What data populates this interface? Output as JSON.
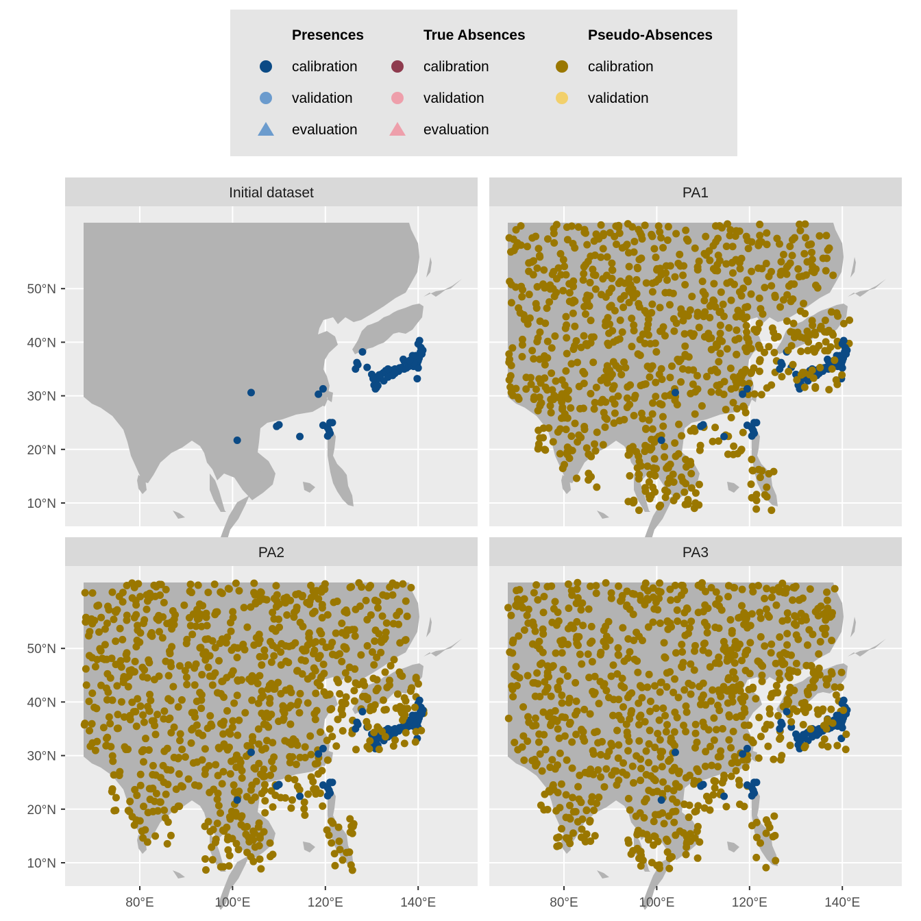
{
  "legend": {
    "groups": [
      {
        "title": "Presences",
        "items": [
          {
            "label": "calibration",
            "color": "#0b4a85",
            "shape": "circle"
          },
          {
            "label": "validation",
            "color": "#6b9bcd",
            "shape": "circle"
          },
          {
            "label": "evaluation",
            "color": "#6b9bcd",
            "shape": "triangle"
          }
        ]
      },
      {
        "title": "True Absences",
        "items": [
          {
            "label": "calibration",
            "color": "#8e3b4e",
            "shape": "circle"
          },
          {
            "label": "validation",
            "color": "#ee9fab",
            "shape": "circle"
          },
          {
            "label": "evaluation",
            "color": "#ee9fab",
            "shape": "triangle"
          }
        ]
      },
      {
        "title": "Pseudo-Absences",
        "items": [
          {
            "label": "calibration",
            "color": "#9a7700",
            "shape": "circle"
          },
          {
            "label": "validation",
            "color": "#f2d06b",
            "shape": "circle"
          }
        ]
      }
    ]
  },
  "axes": {
    "x_ticks": [
      "80°E",
      "100°E",
      "120°E",
      "140°E"
    ],
    "x_values": [
      80,
      100,
      120,
      140
    ],
    "y_ticks": [
      "10°N",
      "20°N",
      "30°N",
      "40°N",
      "50°N"
    ],
    "y_values": [
      10,
      20,
      30,
      40,
      50
    ]
  },
  "panels": [
    {
      "title": "Initial dataset",
      "pseudo_absences": false
    },
    {
      "title": "PA1",
      "pseudo_absences": true
    },
    {
      "title": "PA2",
      "pseudo_absences": true
    },
    {
      "title": "PA3",
      "pseudo_absences": true
    }
  ],
  "colors": {
    "panel_bg": "#ebebeb",
    "land": "#b3b3b3",
    "strip": "#d9d9d9",
    "legend_bg": "#e5e5e5",
    "presence": "#0b4a85",
    "pseudo_absence": "#9a7700"
  },
  "chart_data": {
    "type": "scatter",
    "presence_points_lonlat": [
      [
        104,
        30.6
      ],
      [
        101,
        21.7
      ],
      [
        109.5,
        24.3
      ],
      [
        110,
        24.6
      ],
      [
        114.5,
        22.4
      ],
      [
        118.5,
        30.3
      ],
      [
        119.5,
        31.3
      ],
      [
        119.5,
        24.5
      ],
      [
        120.5,
        24
      ],
      [
        121,
        23
      ],
      [
        120.5,
        22.5
      ],
      [
        121,
        25
      ],
      [
        121.5,
        25
      ],
      [
        120.8,
        23.5
      ],
      [
        127,
        35.8
      ],
      [
        126.8,
        36.2
      ],
      [
        126.5,
        35
      ],
      [
        128,
        38.2
      ],
      [
        129,
        35.3
      ],
      [
        130,
        34
      ],
      [
        130.5,
        33.5
      ],
      [
        130.5,
        32
      ],
      [
        131,
        31.5
      ],
      [
        131,
        32.8
      ],
      [
        131.5,
        33.3
      ],
      [
        132,
        34
      ],
      [
        132.5,
        34.3
      ],
      [
        133,
        34.7
      ],
      [
        133.5,
        35
      ],
      [
        134,
        34.7
      ],
      [
        134.5,
        34.8
      ],
      [
        135,
        35
      ],
      [
        135.5,
        34.8
      ],
      [
        135.8,
        34.6
      ],
      [
        136,
        35.2
      ],
      [
        136.5,
        35.3
      ],
      [
        137,
        35
      ],
      [
        137.5,
        35.2
      ],
      [
        138,
        35.5
      ],
      [
        138.5,
        35.8
      ],
      [
        139,
        35.5
      ],
      [
        139.5,
        35.7
      ],
      [
        139.8,
        36
      ],
      [
        140,
        36.5
      ],
      [
        140.2,
        37
      ],
      [
        140.5,
        38.2
      ],
      [
        140.6,
        39
      ],
      [
        140,
        39.7
      ],
      [
        140.3,
        40.3
      ],
      [
        139.5,
        37.5
      ],
      [
        138.8,
        37.5
      ],
      [
        137,
        36.5
      ],
      [
        136.8,
        36.8
      ],
      [
        135,
        34.2
      ],
      [
        133.5,
        33.5
      ],
      [
        132.6,
        32.8
      ],
      [
        134.5,
        33.8
      ],
      [
        131.6,
        33.9
      ],
      [
        130.3,
        33.2
      ],
      [
        130.8,
        31.3
      ],
      [
        131.3,
        31.9
      ],
      [
        139.8,
        33.2
      ],
      [
        140,
        35.2
      ],
      [
        139.1,
        36.2
      ],
      [
        138.2,
        36.6
      ],
      [
        141,
        38.5
      ],
      [
        140.8,
        37.8
      ]
    ],
    "pseudo_absence_points": "random samples of roughly 900 points per PA set over East and South Asia land"
  }
}
